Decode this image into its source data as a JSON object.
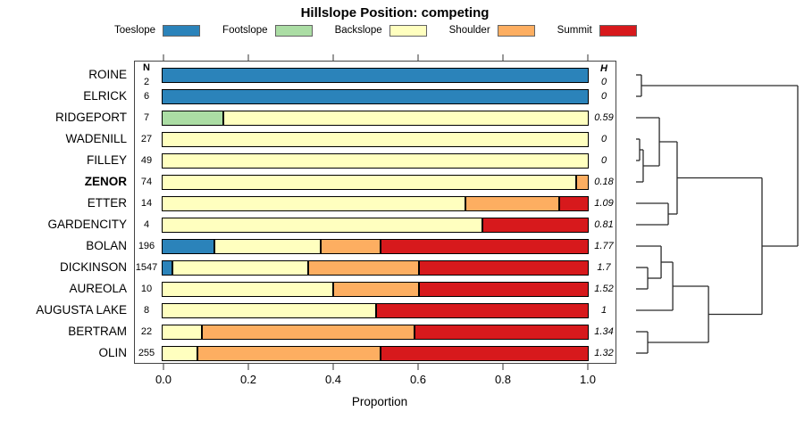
{
  "title": "Hillslope Position: competing",
  "legend": {
    "entries": [
      {
        "label": "Toeslope",
        "color": "#2B83BA"
      },
      {
        "label": "Footslope",
        "color": "#ABDDA4"
      },
      {
        "label": "Backslope",
        "color": "#FFFFBF"
      },
      {
        "label": "Shoulder",
        "color": "#FDAE61"
      },
      {
        "label": "Summit",
        "color": "#D7191C"
      }
    ]
  },
  "columns": {
    "n": "N",
    "h": "H"
  },
  "axis": {
    "label": "Proportion",
    "ticks": [
      "0.0",
      "0.2",
      "0.4",
      "0.6",
      "0.8",
      "1.0"
    ]
  },
  "chart_data": {
    "type": "bar",
    "subtype": "horizontal-stacked-proportion with right-side dendrogram",
    "title": "Hillslope Position: competing",
    "xlabel": "Proportion",
    "xlim": [
      0,
      1
    ],
    "grid": false,
    "legend_position": "top",
    "categories": [
      "Toeslope",
      "Footslope",
      "Backslope",
      "Shoulder",
      "Summit"
    ],
    "category_colors": {
      "Toeslope": "#2B83BA",
      "Footslope": "#ABDDA4",
      "Backslope": "#FFFFBF",
      "Shoulder": "#FDAE61",
      "Summit": "#D7191C"
    },
    "rows": [
      {
        "name": "ROINE",
        "n": "2",
        "h": "0",
        "bold": false,
        "segments": [
          [
            "Toeslope",
            1.0
          ]
        ]
      },
      {
        "name": "ELRICK",
        "n": "6",
        "h": "0",
        "bold": false,
        "segments": [
          [
            "Toeslope",
            1.0
          ]
        ]
      },
      {
        "name": "RIDGEPORT",
        "n": "7",
        "h": "0.59",
        "bold": false,
        "segments": [
          [
            "Footslope",
            0.14
          ],
          [
            "Backslope",
            0.86
          ]
        ]
      },
      {
        "name": "WADENILL",
        "n": "27",
        "h": "0",
        "bold": false,
        "segments": [
          [
            "Backslope",
            1.0
          ]
        ]
      },
      {
        "name": "FILLEY",
        "n": "49",
        "h": "0",
        "bold": false,
        "segments": [
          [
            "Backslope",
            1.0
          ]
        ]
      },
      {
        "name": "ZENOR",
        "n": "74",
        "h": "0.18",
        "bold": true,
        "segments": [
          [
            "Backslope",
            0.97
          ],
          [
            "Shoulder",
            0.03
          ]
        ]
      },
      {
        "name": "ETTER",
        "n": "14",
        "h": "1.09",
        "bold": false,
        "segments": [
          [
            "Backslope",
            0.71
          ],
          [
            "Shoulder",
            0.22
          ],
          [
            "Summit",
            0.07
          ]
        ]
      },
      {
        "name": "GARDENCITY",
        "n": "4",
        "h": "0.81",
        "bold": false,
        "segments": [
          [
            "Backslope",
            0.75
          ],
          [
            "Summit",
            0.25
          ]
        ]
      },
      {
        "name": "BOLAN",
        "n": "196",
        "h": "1.77",
        "bold": false,
        "segments": [
          [
            "Toeslope",
            0.12
          ],
          [
            "Backslope",
            0.25
          ],
          [
            "Shoulder",
            0.14
          ],
          [
            "Summit",
            0.49
          ]
        ]
      },
      {
        "name": "DICKINSON",
        "n": "1547",
        "h": "1.7",
        "bold": false,
        "segments": [
          [
            "Toeslope",
            0.02
          ],
          [
            "Backslope",
            0.32
          ],
          [
            "Shoulder",
            0.26
          ],
          [
            "Summit",
            0.4
          ]
        ]
      },
      {
        "name": "AUREOLA",
        "n": "10",
        "h": "1.52",
        "bold": false,
        "segments": [
          [
            "Backslope",
            0.4
          ],
          [
            "Shoulder",
            0.2
          ],
          [
            "Summit",
            0.4
          ]
        ]
      },
      {
        "name": "AUGUSTA LAKE",
        "n": "8",
        "h": "1",
        "bold": false,
        "segments": [
          [
            "Backslope",
            0.5
          ],
          [
            "Summit",
            0.5
          ]
        ]
      },
      {
        "name": "BERTRAM",
        "n": "22",
        "h": "1.34",
        "bold": false,
        "segments": [
          [
            "Backslope",
            0.09
          ],
          [
            "Shoulder",
            0.5
          ],
          [
            "Summit",
            0.41
          ]
        ]
      },
      {
        "name": "OLIN",
        "n": "255",
        "h": "1.32",
        "bold": false,
        "segments": [
          [
            "Backslope",
            0.08
          ],
          [
            "Shoulder",
            0.43
          ],
          [
            "Summit",
            0.49
          ]
        ]
      }
    ],
    "dendrogram": {
      "note": "merges: left/right are leaf names or prior merge indices; height normalized 0..1",
      "merges": [
        [
          "WADENILL",
          "FILLEY",
          0.022
        ],
        [
          0,
          "ZENOR",
          0.044
        ],
        [
          "RIDGEPORT",
          1,
          0.144
        ],
        [
          "ETTER",
          "GARDENCITY",
          0.199
        ],
        [
          2,
          3,
          0.254
        ],
        [
          "DICKINSON",
          "AUREOLA",
          0.072
        ],
        [
          "BOLAN",
          5,
          0.155
        ],
        [
          6,
          "AUGUSTA LAKE",
          0.227
        ],
        [
          "BERTRAM",
          "OLIN",
          0.072
        ],
        [
          7,
          8,
          0.448
        ],
        [
          4,
          9,
          0.779
        ],
        [
          "ROINE",
          "ELRICK",
          0.033
        ],
        [
          11,
          10,
          1.0
        ]
      ]
    }
  }
}
